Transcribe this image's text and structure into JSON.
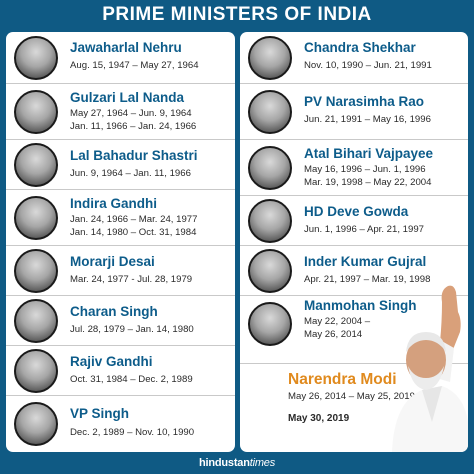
{
  "header": {
    "title": "PRIME MINISTERS OF INDIA"
  },
  "left": [
    {
      "name": "Jawaharlal Nehru",
      "terms": [
        "Aug. 15, 1947 – May 27, 1964"
      ]
    },
    {
      "name": "Gulzari Lal Nanda",
      "terms": [
        "May 27, 1964 – Jun. 9, 1964",
        "Jan. 11, 1966 – Jan. 24, 1966"
      ]
    },
    {
      "name": "Lal Bahadur Shastri",
      "terms": [
        "Jun. 9, 1964 – Jan. 11, 1966"
      ]
    },
    {
      "name": "Indira Gandhi",
      "terms": [
        "Jan. 24, 1966 – Mar. 24, 1977",
        "Jan. 14, 1980 – Oct. 31, 1984"
      ]
    },
    {
      "name": "Morarji Desai",
      "terms": [
        "Mar. 24, 1977 - Jul. 28, 1979"
      ]
    },
    {
      "name": "Charan Singh",
      "terms": [
        "Jul. 28, 1979 – Jan. 14, 1980"
      ]
    },
    {
      "name": "Rajiv Gandhi",
      "terms": [
        "Oct. 31, 1984 – Dec. 2, 1989"
      ]
    },
    {
      "name": "VP Singh",
      "terms": [
        "Dec. 2, 1989 – Nov. 10, 1990"
      ]
    }
  ],
  "right": [
    {
      "name": "Chandra Shekhar",
      "terms": [
        "Nov. 10, 1990 – Jun. 21, 1991"
      ]
    },
    {
      "name": "PV Narasimha Rao",
      "terms": [
        "Jun. 21, 1991 – May 16, 1996"
      ]
    },
    {
      "name": "Atal Bihari Vajpayee",
      "terms": [
        "May 16, 1996 – Jun. 1, 1996",
        "Mar. 19, 1998 – May 22, 2004"
      ]
    },
    {
      "name": "HD Deve Gowda",
      "terms": [
        "Jun. 1, 1996 – Apr. 21, 1997"
      ]
    },
    {
      "name": "Inder Kumar Gujral",
      "terms": [
        "Apr. 21, 1997 – Mar. 19, 1998"
      ]
    },
    {
      "name": "Manmohan Singh",
      "terms": [
        "May 22, 2004 –",
        "May 26, 2014"
      ]
    }
  ],
  "current": {
    "name": "Narendra Modi",
    "term": "May 26, 2014 – May 25, 2019",
    "new_term": "May 30, 2019"
  },
  "footer": {
    "brand_bold": "hindustan",
    "brand_light": "times"
  }
}
